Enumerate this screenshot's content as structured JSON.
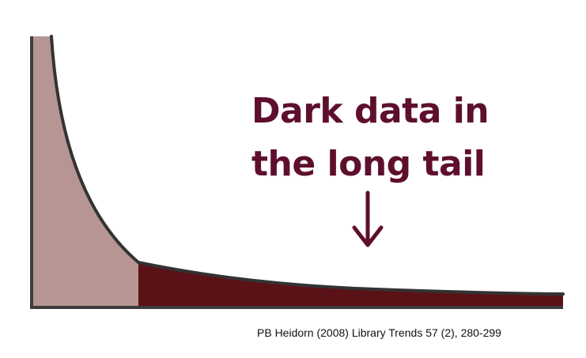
{
  "headline": {
    "line1": "Dark data in",
    "line2": "the long tail"
  },
  "citation": "PB Heidorn (2008) Library Trends 57 (2), 280-299",
  "colors": {
    "head_fill": "#b69593",
    "tail_fill": "#5a1216",
    "text": "#5e0f2e",
    "axis": "#3d3d3d",
    "curve": "#333333"
  },
  "icons": {
    "arrow": "down-arrow-icon"
  }
}
